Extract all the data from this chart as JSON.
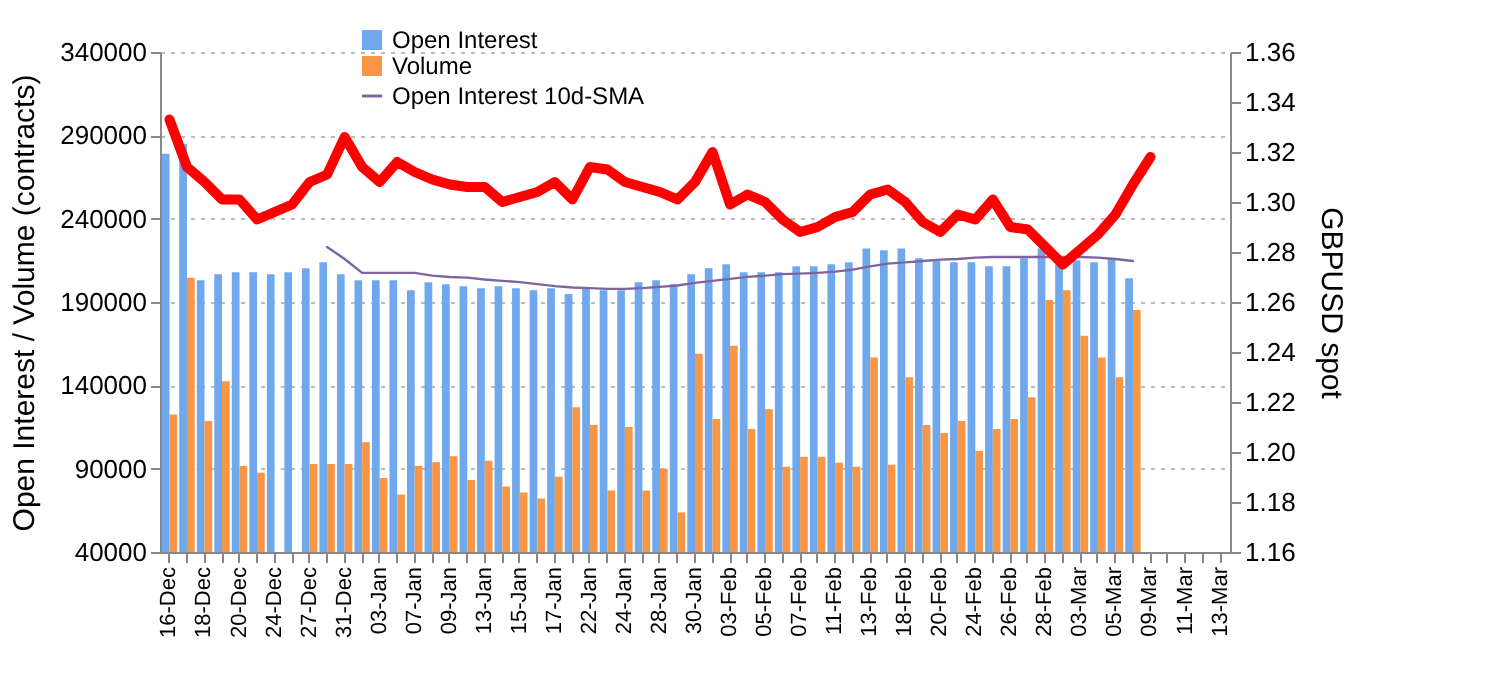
{
  "chart_data": {
    "type": "bar",
    "ylabel": "Open Interest / Volume (contracts)",
    "y2label": "GBPUSD spot",
    "categories": [
      "16-Dec",
      null,
      "18-Dec",
      null,
      "20-Dec",
      null,
      "24-Dec",
      null,
      "27-Dec",
      null,
      "31-Dec",
      null,
      "03-Jan",
      null,
      "07-Jan",
      null,
      "09-Jan",
      null,
      "13-Jan",
      null,
      "15-Jan",
      null,
      "17-Jan",
      null,
      "22-Jan",
      null,
      "24-Jan",
      null,
      "28-Jan",
      null,
      "30-Jan",
      null,
      "03-Feb",
      null,
      "05-Feb",
      null,
      "07-Feb",
      null,
      "11-Feb",
      null,
      "13-Feb",
      null,
      "18-Feb",
      null,
      "20-Feb",
      null,
      "24-Feb",
      null,
      "26-Feb",
      null,
      "28-Feb",
      null,
      "03-Mar",
      null,
      "05-Mar",
      null,
      "09-Mar",
      null,
      "11-Mar",
      null,
      "13-Mar"
    ],
    "series": [
      {
        "name": "Open Interest",
        "color": "#6fa8ec",
        "values": [
          279000,
          285000,
          203000,
          206600,
          207900,
          207900,
          206600,
          207900,
          210200,
          213800,
          206600,
          203000,
          203000,
          203000,
          197100,
          201900,
          200700,
          199500,
          198300,
          199500,
          198300,
          197100,
          198300,
          194800,
          198300,
          197100,
          197100,
          201900,
          203100,
          200700,
          206700,
          210200,
          212600,
          207900,
          207900,
          207900,
          211400,
          211400,
          212600,
          213800,
          222100,
          221000,
          222100,
          216200,
          215000,
          213800,
          213800,
          211400,
          211400,
          216200,
          222100,
          216200,
          215000,
          213800,
          216200,
          204300,
          null,
          null,
          null,
          null,
          null
        ]
      },
      {
        "name": "Volume",
        "color": "#f79646",
        "values": [
          122500,
          204600,
          118600,
          142400,
          91600,
          87600,
          null,
          null,
          92800,
          92800,
          92800,
          105900,
          84400,
          74500,
          91600,
          93900,
          97500,
          83200,
          94800,
          79300,
          75700,
          72100,
          85200,
          126900,
          116200,
          76900,
          115000,
          76900,
          90000,
          63800,
          159000,
          119800,
          163800,
          113800,
          125700,
          91200,
          97100,
          97100,
          93600,
          91200,
          156700,
          92400,
          144800,
          116200,
          111400,
          118600,
          100700,
          113800,
          119800,
          132900,
          191200,
          197100,
          169800,
          156700,
          144800,
          185200,
          null,
          null,
          null,
          null,
          null
        ]
      },
      {
        "name": "Open Interest 10d-SMA",
        "type": "line",
        "color": "#8064a2",
        "values": [
          null,
          null,
          null,
          null,
          null,
          null,
          null,
          null,
          null,
          223000,
          215800,
          207500,
          207500,
          207500,
          207500,
          205800,
          205000,
          204600,
          203500,
          202700,
          201900,
          200700,
          199500,
          198700,
          198300,
          197900,
          197900,
          198300,
          199100,
          199900,
          201500,
          202700,
          203900,
          205100,
          205800,
          206700,
          207000,
          207500,
          208200,
          209400,
          211400,
          213000,
          213800,
          214600,
          215400,
          215800,
          216600,
          217000,
          217000,
          217000,
          217000,
          217000,
          217000,
          216600,
          215800,
          214600,
          null,
          null,
          null,
          null,
          null
        ]
      },
      {
        "type": "line",
        "axis": "y2",
        "color": "#ff0000",
        "values": [
          1.333,
          1.314,
          1.308,
          1.301,
          1.301,
          1.293,
          1.296,
          1.299,
          1.308,
          1.311,
          1.326,
          1.314,
          1.308,
          1.316,
          1.312,
          1.309,
          1.307,
          1.306,
          1.306,
          1.3,
          1.302,
          1.304,
          1.308,
          1.301,
          1.314,
          1.313,
          1.308,
          1.306,
          1.304,
          1.301,
          1.308,
          1.32,
          1.299,
          1.303,
          1.3,
          1.293,
          1.288,
          1.29,
          1.294,
          1.296,
          1.303,
          1.305,
          1.3,
          1.292,
          1.288,
          1.295,
          1.293,
          1.301,
          1.29,
          1.289,
          1.282,
          1.275,
          1.281,
          1.287,
          1.295,
          1.307,
          1.318,
          null,
          null,
          null,
          null
        ]
      }
    ],
    "ylim": [
      40000,
      340000
    ],
    "yticks": [
      40000,
      90000,
      140000,
      190000,
      240000,
      290000,
      340000
    ],
    "y2lim": [
      1.16,
      1.36
    ],
    "y2ticks": [
      1.16,
      1.18,
      {
        "value": 1.2,
        "label": "1.20"
      },
      1.22,
      1.24,
      1.26,
      1.28,
      {
        "value": 1.3,
        "label": "1.30"
      },
      1.32,
      1.34,
      1.36
    ],
    "grid": "y",
    "legend": "top"
  }
}
